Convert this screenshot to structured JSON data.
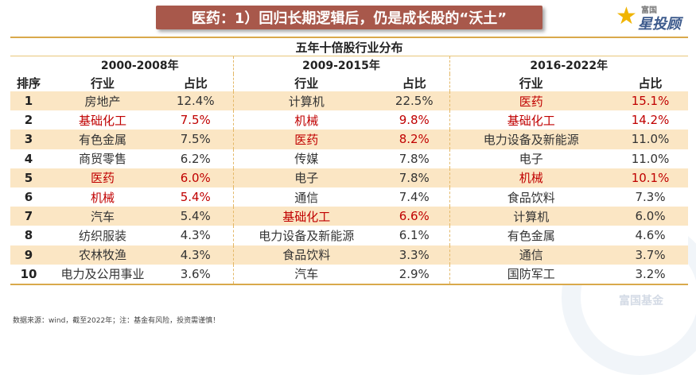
{
  "title": "医药：1）回归长期逻辑后，仍是成长股的“沃土”",
  "logo": {
    "top": "富国",
    "bottom": "星投顾"
  },
  "watermark": "富国基金",
  "table": {
    "caption": "五年十倍股行业分布",
    "periods": [
      "2000-2008年",
      "2009-2015年",
      "2016-2022年"
    ],
    "rank_header": "排序",
    "industry_header": "行业",
    "share_header": "占比",
    "rows": [
      {
        "rank": "1",
        "cells": [
          {
            "industry": "房地产",
            "share": "12.4%",
            "hl": false
          },
          {
            "industry": "计算机",
            "share": "22.5%",
            "hl": false
          },
          {
            "industry": "医药",
            "share": "15.1%",
            "hl": true
          }
        ]
      },
      {
        "rank": "2",
        "cells": [
          {
            "industry": "基础化工",
            "share": "7.5%",
            "hl": true
          },
          {
            "industry": "机械",
            "share": "9.8%",
            "hl": true
          },
          {
            "industry": "基础化工",
            "share": "14.2%",
            "hl": true
          }
        ]
      },
      {
        "rank": "3",
        "cells": [
          {
            "industry": "有色金属",
            "share": "7.5%",
            "hl": false
          },
          {
            "industry": "医药",
            "share": "8.2%",
            "hl": true
          },
          {
            "industry": "电力设备及新能源",
            "share": "11.0%",
            "hl": false
          }
        ]
      },
      {
        "rank": "4",
        "cells": [
          {
            "industry": "商贸零售",
            "share": "6.2%",
            "hl": false
          },
          {
            "industry": "传媒",
            "share": "7.8%",
            "hl": false
          },
          {
            "industry": "电子",
            "share": "11.0%",
            "hl": false
          }
        ]
      },
      {
        "rank": "5",
        "cells": [
          {
            "industry": "医药",
            "share": "6.0%",
            "hl": true
          },
          {
            "industry": "电子",
            "share": "7.8%",
            "hl": false
          },
          {
            "industry": "机械",
            "share": "10.1%",
            "hl": true
          }
        ]
      },
      {
        "rank": "6",
        "cells": [
          {
            "industry": "机械",
            "share": "5.4%",
            "hl": true
          },
          {
            "industry": "通信",
            "share": "7.4%",
            "hl": false
          },
          {
            "industry": "食品饮料",
            "share": "7.3%",
            "hl": false
          }
        ]
      },
      {
        "rank": "7",
        "cells": [
          {
            "industry": "汽车",
            "share": "5.4%",
            "hl": false
          },
          {
            "industry": "基础化工",
            "share": "6.6%",
            "hl": true
          },
          {
            "industry": "计算机",
            "share": "6.0%",
            "hl": false
          }
        ]
      },
      {
        "rank": "8",
        "cells": [
          {
            "industry": "纺织服装",
            "share": "4.3%",
            "hl": false
          },
          {
            "industry": "电力设备及新能源",
            "share": "6.1%",
            "hl": false
          },
          {
            "industry": "有色金属",
            "share": "4.6%",
            "hl": false
          }
        ]
      },
      {
        "rank": "9",
        "cells": [
          {
            "industry": "农林牧渔",
            "share": "4.3%",
            "hl": false
          },
          {
            "industry": "食品饮料",
            "share": "3.3%",
            "hl": false
          },
          {
            "industry": "通信",
            "share": "3.7%",
            "hl": false
          }
        ]
      },
      {
        "rank": "10",
        "cells": [
          {
            "industry": "电力及公用事业",
            "share": "3.6%",
            "hl": false
          },
          {
            "industry": "汽车",
            "share": "2.9%",
            "hl": false
          },
          {
            "industry": "国防军工",
            "share": "3.2%",
            "hl": false
          }
        ]
      }
    ]
  },
  "footnote": "数据来源：wind，截至2022年；注：基金有风险，投资需谨慎！",
  "colors": {
    "banner": "#a8584b",
    "stripe": "#fbe6c4",
    "highlight": "#c00000",
    "rule": "#d9a94b"
  }
}
